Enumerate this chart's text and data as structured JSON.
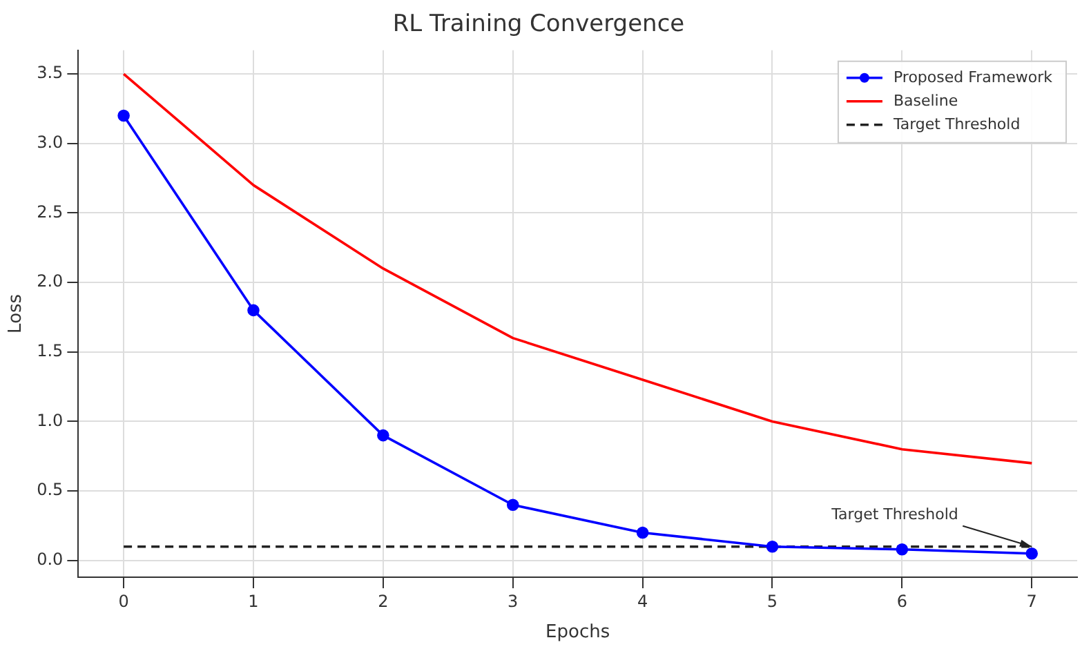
{
  "chart_data": {
    "type": "line",
    "title": "RL Training Convergence",
    "xlabel": "Epochs",
    "ylabel": "Loss",
    "x": [
      0,
      1,
      2,
      3,
      4,
      5,
      6,
      7
    ],
    "series": [
      {
        "name": "Proposed Framework",
        "color": "#0000ff",
        "marker": "circle",
        "line_style": "solid",
        "values": [
          3.2,
          1.8,
          0.9,
          0.4,
          0.2,
          0.1,
          0.08,
          0.05
        ]
      },
      {
        "name": "Baseline",
        "color": "#ff0000",
        "marker": "none",
        "line_style": "solid",
        "values": [
          3.5,
          2.7,
          2.1,
          1.6,
          1.3,
          1.0,
          0.8,
          0.7
        ]
      },
      {
        "name": "Target Threshold",
        "color": "#222222",
        "marker": "none",
        "line_style": "dashed",
        "values": [
          0.1,
          0.1,
          0.1,
          0.1,
          0.1,
          0.1,
          0.1,
          0.1
        ]
      }
    ],
    "xlim": [
      -0.35,
      7.35
    ],
    "xticks": [
      0,
      1,
      2,
      3,
      4,
      5,
      6,
      7
    ],
    "ylim": [
      -0.12,
      3.67
    ],
    "yticks": [
      {
        "value": 0,
        "label": "0.0"
      },
      0.5,
      {
        "value": 1,
        "label": "1.0"
      },
      1.5,
      {
        "value": 2,
        "label": "2.0"
      },
      2.5,
      {
        "value": 3,
        "label": "3.0"
      },
      3.5
    ],
    "grid": true,
    "legend": "top right",
    "annotations": [
      {
        "text": "Target Threshold",
        "x": 7,
        "y": 0.1
      }
    ]
  }
}
